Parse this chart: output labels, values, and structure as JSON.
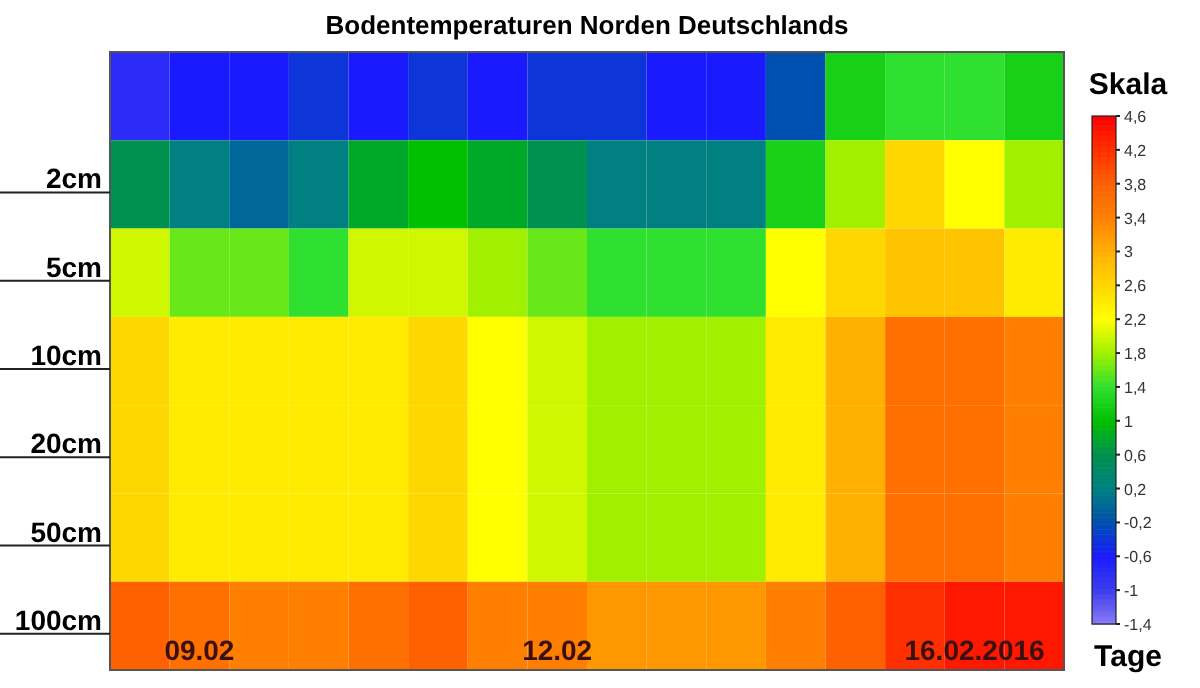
{
  "chart_data": {
    "type": "heatmap",
    "title": "Bodentemperaturen Norden Deutschlands",
    "xlabel": "Tage",
    "clabel": "Skala",
    "categories": [
      null,
      "09.02",
      null,
      null,
      null,
      null,
      null,
      "12.02",
      null,
      null,
      null,
      null,
      null,
      null,
      "16.02.2016",
      null
    ],
    "y_categories": [
      null,
      "2cm",
      "5cm",
      "10cm",
      "20cm",
      "50cm",
      "100cm"
    ],
    "cells": [
      [
        -0.8,
        -0.6,
        -0.6,
        -0.4,
        -0.6,
        -0.4,
        -0.6,
        -0.4,
        -0.4,
        -0.6,
        -0.6,
        -0.2,
        1.2,
        1.4,
        1.4,
        1.2
      ],
      [
        0.6,
        0.2,
        0,
        0.2,
        0.8,
        1,
        0.8,
        0.6,
        0.2,
        0.2,
        0.2,
        1.2,
        1.8,
        2.6,
        2.2,
        1.8
      ],
      [
        2,
        1.6,
        1.6,
        1.4,
        2,
        2,
        1.8,
        1.6,
        1.4,
        1.4,
        1.4,
        2.2,
        2.6,
        2.8,
        2.8,
        2.4
      ],
      [
        2.6,
        2.4,
        2.4,
        2.4,
        2.4,
        2.6,
        2.2,
        2,
        1.8,
        1.8,
        1.8,
        2.4,
        3,
        3.6,
        3.6,
        3.4
      ],
      [
        2.6,
        2.4,
        2.4,
        2.4,
        2.4,
        2.6,
        2.2,
        2,
        1.8,
        1.8,
        1.8,
        2.4,
        3,
        3.6,
        3.6,
        3.4
      ],
      [
        2.6,
        2.4,
        2.4,
        2.4,
        2.4,
        2.6,
        2.2,
        2,
        1.8,
        1.8,
        1.8,
        2.4,
        3,
        3.6,
        3.6,
        3.4
      ],
      [
        3.8,
        3.6,
        3.4,
        3.4,
        3.6,
        3.8,
        3.4,
        3.4,
        3.2,
        3.2,
        3.2,
        3.4,
        3.8,
        4.2,
        4.4,
        4.4
      ]
    ],
    "clim": [
      -1.4,
      4.6
    ],
    "cticks": [
      {
        "value": -1.4,
        "label": "-1,4"
      },
      {
        "value": -1,
        "label": "-1"
      },
      {
        "value": -0.6,
        "label": "-0,6"
      },
      {
        "value": -0.2,
        "label": "-0,2"
      },
      {
        "value": 0.2,
        "label": "0,2"
      },
      {
        "value": 0.6,
        "label": "0,6"
      },
      1,
      {
        "value": 1.4,
        "label": "1,4"
      },
      {
        "value": 1.8,
        "label": "1,8"
      },
      {
        "value": 2.2,
        "label": "2,2"
      },
      {
        "value": 2.6,
        "label": "2,6"
      },
      3,
      {
        "value": 3.4,
        "label": "3,4"
      },
      {
        "value": 3.8,
        "label": "3,8"
      },
      {
        "value": 4.2,
        "label": "4,2"
      },
      {
        "value": 4.6,
        "label": "4,6"
      }
    ]
  }
}
